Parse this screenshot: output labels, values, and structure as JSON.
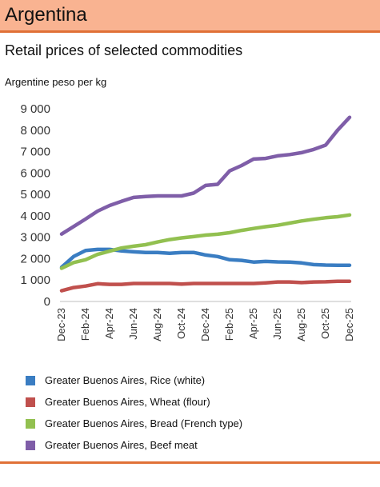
{
  "header": {
    "title": "Argentina"
  },
  "chart_data": {
    "type": "line",
    "title": "Retail prices of selected commodities",
    "ylabel": "Argentine peso per kg",
    "ylim": [
      0,
      9000
    ],
    "yticks": [
      0,
      1000,
      2000,
      3000,
      4000,
      5000,
      6000,
      7000,
      8000,
      9000
    ],
    "ytick_labels": [
      "0",
      "1 000",
      "2 000",
      "3 000",
      "4 000",
      "5 000",
      "6 000",
      "7 000",
      "8 000",
      "9 000"
    ],
    "grid": false,
    "legend_position": "bottom",
    "x": [
      "Dec-23",
      "Jan-24",
      "Feb-24",
      "Mar-24",
      "Apr-24",
      "May-24",
      "Jun-24",
      "Jul-24",
      "Aug-24",
      "Sep-24",
      "Oct-24",
      "Nov-24",
      "Dec-24",
      "Jan-25",
      "Feb-25",
      "Mar-25",
      "Apr-25",
      "May-25",
      "Jun-25",
      "Jul-25",
      "Aug-25",
      "Sep-25",
      "Oct-25",
      "Nov-25",
      "Dec-25"
    ],
    "xtick_labels": [
      "Dec-23",
      "Feb-24",
      "Apr-24",
      "Jun-24",
      "Aug-24",
      "Oct-24",
      "Dec-24",
      "Feb-25",
      "Apr-25",
      "Jun-25",
      "Aug-25",
      "Oct-25",
      "Dec-25"
    ],
    "series": [
      {
        "name": "Greater Buenos Aires, Rice (white)",
        "color": "#3a7dc2",
        "values": [
          1600,
          2100,
          2380,
          2430,
          2430,
          2360,
          2320,
          2290,
          2290,
          2250,
          2290,
          2290,
          2170,
          2100,
          1950,
          1920,
          1840,
          1870,
          1850,
          1840,
          1800,
          1720,
          1700,
          1690,
          1690
        ]
      },
      {
        "name": "Greater Buenos Aires, Wheat (flour)",
        "color": "#c0504d",
        "values": [
          500,
          650,
          720,
          830,
          800,
          800,
          840,
          840,
          840,
          840,
          810,
          840,
          840,
          840,
          840,
          840,
          840,
          870,
          910,
          910,
          880,
          910,
          920,
          940,
          940
        ]
      },
      {
        "name": "Greater Buenos Aires, Bread (French type)",
        "color": "#92c050",
        "values": [
          1550,
          1820,
          1950,
          2200,
          2350,
          2500,
          2580,
          2650,
          2780,
          2890,
          2970,
          3030,
          3100,
          3140,
          3210,
          3320,
          3410,
          3490,
          3560,
          3660,
          3760,
          3840,
          3910,
          3960,
          4040
        ]
      },
      {
        "name": "Greater Buenos Aires, Beef meat",
        "color": "#7f5ea8",
        "values": [
          3150,
          3500,
          3850,
          4220,
          4480,
          4680,
          4860,
          4900,
          4930,
          4930,
          4930,
          5060,
          5420,
          5470,
          6100,
          6350,
          6650,
          6680,
          6800,
          6860,
          6950,
          7100,
          7300,
          8000,
          8600
        ]
      }
    ]
  }
}
